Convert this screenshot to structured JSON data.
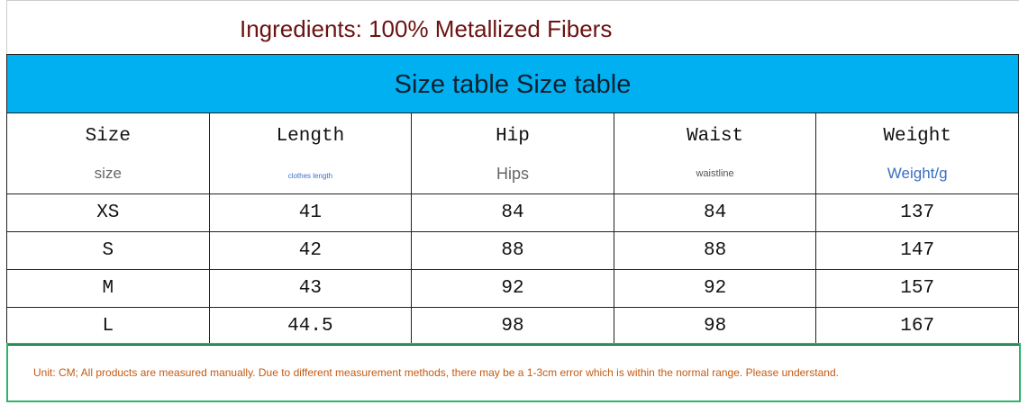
{
  "title": "Ingredients: 100% Metallized Fibers",
  "banner": "Size table Size table",
  "table": {
    "header": [
      {
        "label": "Size",
        "sublabel": "size"
      },
      {
        "label": "Length",
        "sublabel": "clothes length"
      },
      {
        "label": "Hip",
        "sublabel": "Hips"
      },
      {
        "label": "Waist",
        "sublabel": "waistline"
      },
      {
        "label": "Weight",
        "sublabel": "Weight/g"
      }
    ],
    "rows": [
      [
        "XS",
        "41",
        "84",
        "84",
        "137"
      ],
      [
        "S",
        "42",
        "88",
        "88",
        "147"
      ],
      [
        "M",
        "43",
        "92",
        "92",
        "157"
      ],
      [
        "L",
        "44.5",
        "98",
        "98",
        "167"
      ]
    ]
  },
  "note": "Unit: CM; All products are measured manually. Due to different measurement methods, there may be a 1-3cm error which is within the normal range. Please understand."
}
